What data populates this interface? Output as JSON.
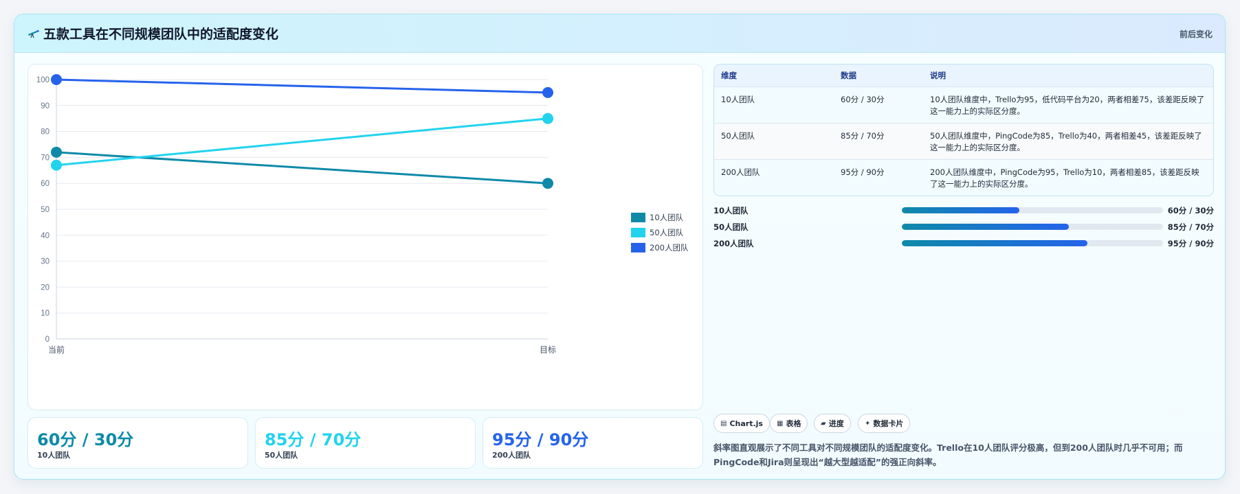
{
  "header": {
    "title": "五款工具在不同规模团队中的适配度变化",
    "tag": "前后变化"
  },
  "chart_data": {
    "type": "line",
    "categories": [
      "当前",
      "目标"
    ],
    "ylim": [
      0,
      100
    ],
    "yticks": [
      0,
      10,
      20,
      30,
      40,
      50,
      60,
      70,
      80,
      90,
      100
    ],
    "grid": true,
    "legend_position": "right",
    "series": [
      {
        "name": "10人团队",
        "values": [
          72,
          60
        ],
        "color": "#0e8aa8"
      },
      {
        "name": "50人团队",
        "values": [
          67,
          85
        ],
        "color": "#22d3ee"
      },
      {
        "name": "200人团队",
        "values": [
          100,
          95
        ],
        "color": "#2563eb"
      }
    ]
  },
  "stats": [
    {
      "value": "60分 / 30分",
      "label": "10人团队",
      "color": "#0e8aa8"
    },
    {
      "value": "85分 / 70分",
      "label": "50人团队",
      "color": "#22d3ee"
    },
    {
      "value": "95分 / 90分",
      "label": "200人团队",
      "color": "#2563eb"
    }
  ],
  "table": {
    "headers": [
      "维度",
      "数据",
      "说明"
    ],
    "rows": [
      [
        "10人团队",
        "60分 / 30分",
        "10人团队维度中，Trello为95，低代码平台为20，两者相差75，该差距反映了这一能力上的实际区分度。"
      ],
      [
        "50人团队",
        "85分 / 70分",
        "50人团队维度中，PingCode为85，Trello为40，两者相差45，该差距反映了这一能力上的实际区分度。"
      ],
      [
        "200人团队",
        "95分 / 90分",
        "200人团队维度中，PingCode为95，Trello为10，两者相差85，该差距反映了这一能力上的实际区分度。"
      ]
    ]
  },
  "progress": [
    {
      "label": "10人团队",
      "value": "60分 / 30分",
      "fraction": 0.45
    },
    {
      "label": "50人团队",
      "value": "85分 / 70分",
      "fraction": 0.64
    },
    {
      "label": "200人团队",
      "value": "95分 / 90分",
      "fraction": 0.71
    }
  ],
  "chips": [
    {
      "icon": "▤",
      "label": "Chart.js",
      "icon_name": "chart-icon"
    },
    {
      "icon": "▦",
      "label": "表格",
      "icon_name": "table-icon"
    },
    {
      "icon": "▰",
      "label": "进度",
      "icon_name": "progress-icon"
    },
    {
      "icon": "✦",
      "label": "数据卡片",
      "icon_name": "card-icon"
    }
  ],
  "note": "斜率图直观展示了不同工具对不同规模团队的适配度变化。Trello在10人团队评分极高，但到200人团队时几乎不可用；而PingCode和Jira则呈现出“越大型越适配”的强正向斜率。"
}
